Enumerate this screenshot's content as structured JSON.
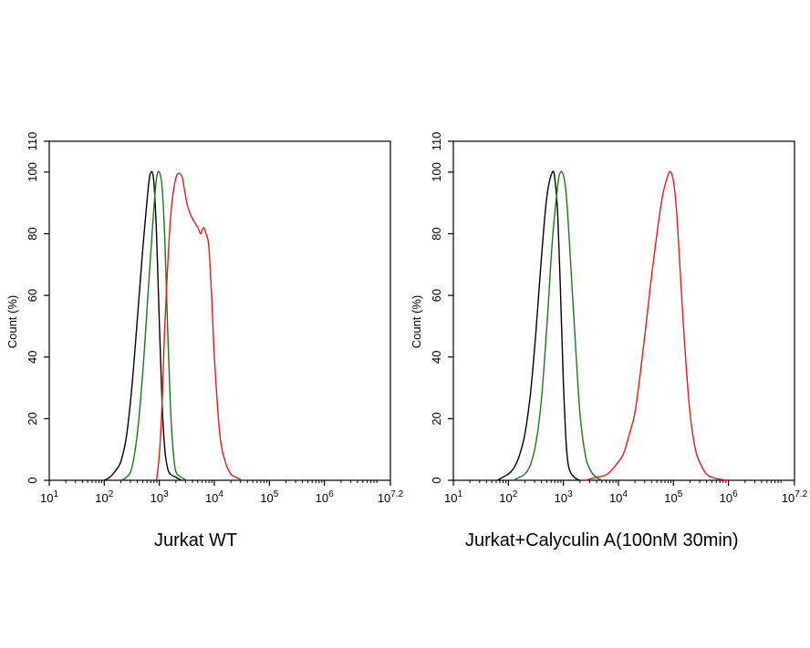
{
  "chart_data": [
    {
      "type": "line",
      "title": "Jurkat WT",
      "xlabel": "",
      "ylabel": "Count  (%)",
      "xscale": "log10",
      "xlim": [
        1,
        7.2
      ],
      "ylim": [
        0,
        110
      ],
      "yticks": [
        0,
        20,
        40,
        60,
        80,
        100,
        110
      ],
      "ytick_labels": [
        "0",
        "20",
        "40",
        "60",
        "80",
        "100",
        "110"
      ],
      "xticks": [
        {
          "base": "10",
          "exp": "1",
          "value": 1
        },
        {
          "base": "10",
          "exp": "2",
          "value": 2
        },
        {
          "base": "10",
          "exp": "3",
          "value": 3
        },
        {
          "base": "10",
          "exp": "4",
          "value": 4
        },
        {
          "base": "10",
          "exp": "5",
          "value": 5
        },
        {
          "base": "10",
          "exp": "6",
          "value": 6
        },
        {
          "base": "10",
          "exp": "7.2",
          "value": 7.2
        }
      ],
      "grid": false,
      "series": [
        {
          "name": "black",
          "color": "#000000",
          "x": [
            2.0,
            2.1,
            2.2,
            2.3,
            2.4,
            2.5,
            2.6,
            2.7,
            2.8,
            2.85,
            2.9,
            2.95,
            3.0,
            3.05,
            3.1,
            3.15,
            3.2,
            3.3,
            3.4
          ],
          "y": [
            0,
            1,
            3,
            6,
            14,
            30,
            52,
            75,
            95,
            100,
            97,
            80,
            52,
            25,
            10,
            4,
            2,
            1,
            0
          ]
        },
        {
          "name": "green",
          "color": "#1a7a1a",
          "x": [
            2.3,
            2.4,
            2.5,
            2.6,
            2.7,
            2.8,
            2.9,
            2.95,
            3.0,
            3.05,
            3.1,
            3.15,
            3.2,
            3.25,
            3.3,
            3.4,
            3.5
          ],
          "y": [
            0,
            1,
            4,
            15,
            35,
            62,
            88,
            98,
            100,
            95,
            78,
            50,
            25,
            10,
            3,
            1,
            0
          ]
        },
        {
          "name": "red",
          "color": "#e31a1c",
          "x": [
            2.95,
            3.0,
            3.05,
            3.1,
            3.2,
            3.3,
            3.4,
            3.45,
            3.5,
            3.55,
            3.6,
            3.7,
            3.75,
            3.8,
            3.85,
            3.9,
            3.95,
            4.0,
            4.1,
            4.2,
            4.3,
            4.4,
            4.5
          ],
          "y": [
            0,
            8,
            25,
            50,
            84,
            98,
            99,
            95,
            90,
            87,
            85,
            82,
            80,
            82,
            80,
            76,
            60,
            40,
            15,
            6,
            2,
            1,
            0
          ]
        }
      ]
    },
    {
      "type": "line",
      "title": "Jurkat+Calyculin A(100nM 30min)",
      "xlabel": "",
      "ylabel": "Count  (%)",
      "xscale": "log10",
      "xlim": [
        1,
        7.2
      ],
      "ylim": [
        0,
        110
      ],
      "yticks": [
        0,
        20,
        40,
        60,
        80,
        100,
        110
      ],
      "ytick_labels": [
        "0",
        "20",
        "40",
        "60",
        "80",
        "100",
        "110"
      ],
      "xticks": [
        {
          "base": "10",
          "exp": "1",
          "value": 1
        },
        {
          "base": "10",
          "exp": "2",
          "value": 2
        },
        {
          "base": "10",
          "exp": "3",
          "value": 3
        },
        {
          "base": "10",
          "exp": "4",
          "value": 4
        },
        {
          "base": "10",
          "exp": "5",
          "value": 5
        },
        {
          "base": "10",
          "exp": "6",
          "value": 6
        },
        {
          "base": "10",
          "exp": "7.2",
          "value": 7.2
        }
      ],
      "grid": false,
      "series": [
        {
          "name": "black",
          "color": "#000000",
          "x": [
            1.8,
            1.9,
            2.0,
            2.1,
            2.2,
            2.3,
            2.4,
            2.5,
            2.6,
            2.7,
            2.8,
            2.85,
            2.9,
            2.95,
            3.0,
            3.05,
            3.1,
            3.2,
            3.3
          ],
          "y": [
            0,
            1,
            2,
            4,
            8,
            15,
            28,
            48,
            72,
            92,
            100,
            97,
            85,
            60,
            32,
            12,
            4,
            1,
            0
          ]
        },
        {
          "name": "green",
          "color": "#1a7a1a",
          "x": [
            2.1,
            2.2,
            2.3,
            2.4,
            2.5,
            2.6,
            2.7,
            2.8,
            2.9,
            2.95,
            3.0,
            3.05,
            3.1,
            3.2,
            3.3,
            3.4,
            3.5,
            3.6,
            3.7
          ],
          "y": [
            0,
            1,
            2,
            5,
            12,
            26,
            50,
            78,
            96,
            100,
            99,
            93,
            80,
            50,
            22,
            8,
            3,
            1,
            0
          ]
        },
        {
          "name": "red",
          "color": "#e31a1c",
          "x": [
            3.4,
            3.6,
            3.8,
            4.0,
            4.1,
            4.2,
            4.3,
            4.4,
            4.5,
            4.6,
            4.7,
            4.8,
            4.9,
            4.95,
            5.0,
            5.05,
            5.1,
            5.2,
            5.3,
            5.4,
            5.5,
            5.6,
            5.7,
            5.8,
            5.9,
            6.0
          ],
          "y": [
            0,
            1,
            2,
            6,
            9,
            15,
            22,
            35,
            50,
            66,
            80,
            92,
            99,
            100,
            97,
            89,
            75,
            45,
            22,
            10,
            5,
            2,
            1,
            0.5,
            0.2,
            0
          ]
        }
      ]
    }
  ]
}
